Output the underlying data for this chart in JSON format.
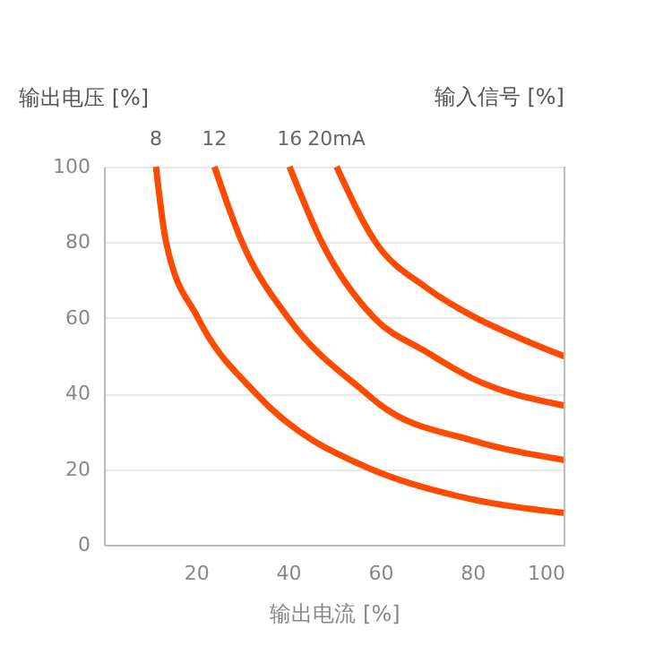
{
  "chart_data": {
    "type": "line",
    "ylabel": "输出电压 [%]",
    "legend_title": "输入信号 [%]",
    "xlabel": "输出电流 [%]",
    "xlim": [
      0,
      100
    ],
    "xticks": [
      20,
      40,
      60,
      80,
      100
    ],
    "ylim": [
      0,
      100
    ],
    "yticks": [
      0,
      20,
      40,
      60,
      80,
      100
    ],
    "grid": "y",
    "marker": "none",
    "line_style": "solid",
    "series": [
      {
        "name": "8",
        "color": "#ff4a00",
        "x": [
          11.3,
          13.5,
          20.4,
          33,
          58,
          60,
          80,
          100
        ],
        "values": [
          100,
          80,
          60,
          40,
          20,
          19,
          12,
          8.4
        ]
      },
      {
        "name": "12",
        "color": "#ff4a00",
        "x": [
          24,
          30,
          40,
          57,
          60,
          80,
          100
        ],
        "values": [
          100,
          80,
          60,
          40,
          37,
          27.6,
          22.4
        ]
      },
      {
        "name": "16",
        "color": "#ff4a00",
        "x": [
          40.3,
          47.3,
          58.7,
          70,
          80,
          100
        ],
        "values": [
          100,
          80,
          60,
          51,
          44,
          36.8
        ]
      },
      {
        "name": "20mA",
        "color": "#ff4a00",
        "x": [
          50.5,
          59,
          70,
          80,
          90,
          100
        ],
        "values": [
          100,
          80,
          68,
          60.5,
          54.8,
          49.8
        ]
      }
    ]
  }
}
